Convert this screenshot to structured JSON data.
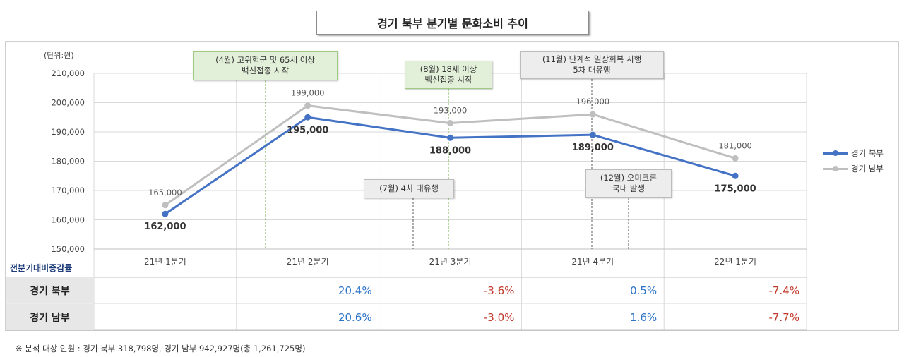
{
  "title": "경기 북부 분기별 문화소비 추이",
  "unit_label": "(단위:원)",
  "chart_data": {
    "type": "line",
    "categories": [
      "21년 1분기",
      "21년 2분기",
      "21년 3분기",
      "21년 4분기",
      "22년 1분기"
    ],
    "ylim": [
      150000,
      210000
    ],
    "yticks": [
      150000,
      160000,
      170000,
      180000,
      190000,
      200000,
      210000
    ],
    "ytick_labels": [
      "150,000",
      "160,000",
      "170,000",
      "180,000",
      "190,000",
      "200,000",
      "210,000"
    ],
    "grid": true,
    "legend_position": "right",
    "series": [
      {
        "name": "경기 북부",
        "color": "#4472c4",
        "values": [
          162000,
          195000,
          188000,
          189000,
          175000
        ],
        "labels": [
          "162,000",
          "195,000",
          "188,000",
          "189,000",
          "175,000"
        ]
      },
      {
        "name": "경기 남부",
        "color": "#bfbfbf",
        "values": [
          165000,
          199000,
          193000,
          196000,
          181000
        ],
        "labels": [
          "165,000",
          "199,000",
          "193,000",
          "196,000",
          "181,000"
        ]
      }
    ],
    "annotations": [
      {
        "lines": [
          "(4월) 고위험군 및 65세 이상",
          "백신접종 시작"
        ],
        "style": "green"
      },
      {
        "lines": [
          "(8월) 18세 이상",
          "백신접종 시작"
        ],
        "style": "green"
      },
      {
        "lines": [
          "(11월) 단계적 일상회복 시행",
          "5차 대유행"
        ],
        "style": "gray"
      },
      {
        "lines": [
          "(7월) 4차 대유행"
        ],
        "style": "gray"
      },
      {
        "lines": [
          "(12월) 오미크론",
          "국내 발생"
        ],
        "style": "gray"
      }
    ]
  },
  "table": {
    "header_label": "전분기대비증감률",
    "rows": [
      {
        "label": "경기 북부",
        "values": [
          "",
          "20.4%",
          "-3.6%",
          "0.5%",
          "-7.4%"
        ]
      },
      {
        "label": "경기 남부",
        "values": [
          "",
          "20.6%",
          "-3.0%",
          "1.6%",
          "-7.7%"
        ]
      }
    ],
    "positive_color": "#2e75c9",
    "negative_color": "#c0392b"
  },
  "footnote": "※ 분석 대상 인원 : 경기 북부 318,798명, 경기 남부 942,927명(총 1,261,725명)"
}
